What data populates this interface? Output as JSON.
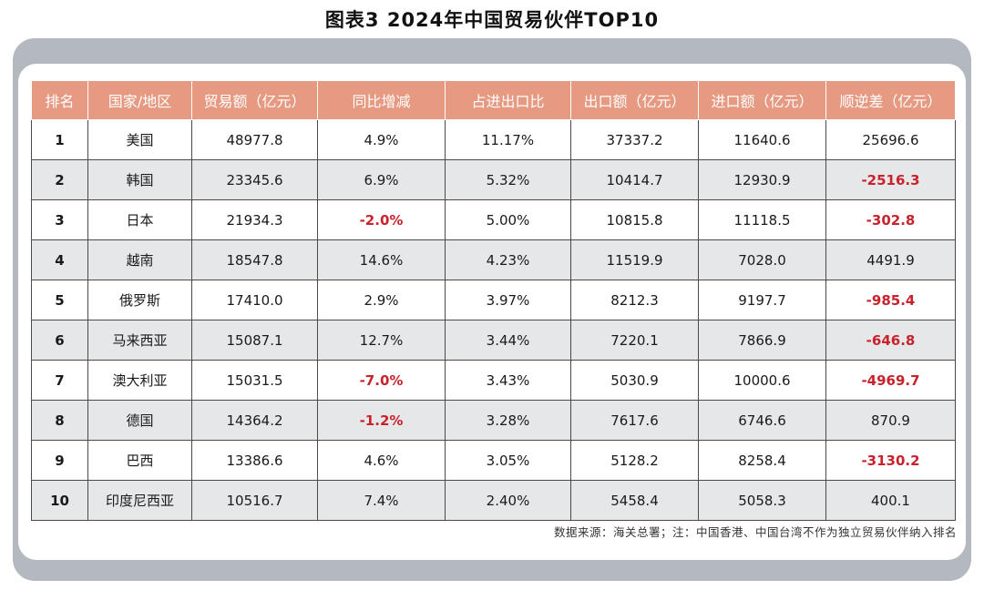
{
  "title": "图表3 2024年中国贸易伙伴TOP10",
  "headers": [
    "排名",
    "国家/地区",
    "贸易额（亿元）",
    "同比增减",
    "占进出口比",
    "出口额（亿元）",
    "进口额（亿元）",
    "顺逆差（亿元）"
  ],
  "rows": [
    [
      "1",
      "美国",
      "48977.8",
      "4.9%",
      "11.17%",
      "37337.2",
      "11640.6",
      "25696.6"
    ],
    [
      "2",
      "韩国",
      "23345.6",
      "6.9%",
      "5.32%",
      "10414.7",
      "12930.9",
      "-2516.3"
    ],
    [
      "3",
      "日本",
      "21934.3",
      "-2.0%",
      "5.00%",
      "10815.8",
      "11118.5",
      "-302.8"
    ],
    [
      "4",
      "越南",
      "18547.8",
      "14.6%",
      "4.23%",
      "11519.9",
      "7028.0",
      "4491.9"
    ],
    [
      "5",
      "俄罗斯",
      "17410.0",
      "2.9%",
      "3.97%",
      "8212.3",
      "9197.7",
      "-985.4"
    ],
    [
      "6",
      "马来西亚",
      "15087.1",
      "12.7%",
      "3.44%",
      "7220.1",
      "7866.9",
      "-646.8"
    ],
    [
      "7",
      "澳大利亚",
      "15031.5",
      "-7.0%",
      "3.43%",
      "5030.9",
      "10000.6",
      "-4969.7"
    ],
    [
      "8",
      "德国",
      "14364.2",
      "-1.2%",
      "3.28%",
      "7617.6",
      "6746.6",
      "870.9"
    ],
    [
      "9",
      "巴西",
      "13386.6",
      "4.6%",
      "3.05%",
      "5128.2",
      "8258.4",
      "-3130.2"
    ],
    [
      "10",
      "印度尼西亚",
      "10516.7",
      "7.4%",
      "2.40%",
      "5458.4",
      "5058.3",
      "400.1"
    ]
  ],
  "source": "数据来源：海关总署；注：中国香港、中国台湾不作为独立贸易伙伴纳入排名",
  "colors": {
    "header_bg": "#e69a82",
    "negative": "#c8232c",
    "frame": "#b4b9bf",
    "stripe": "#e6e7e9"
  }
}
